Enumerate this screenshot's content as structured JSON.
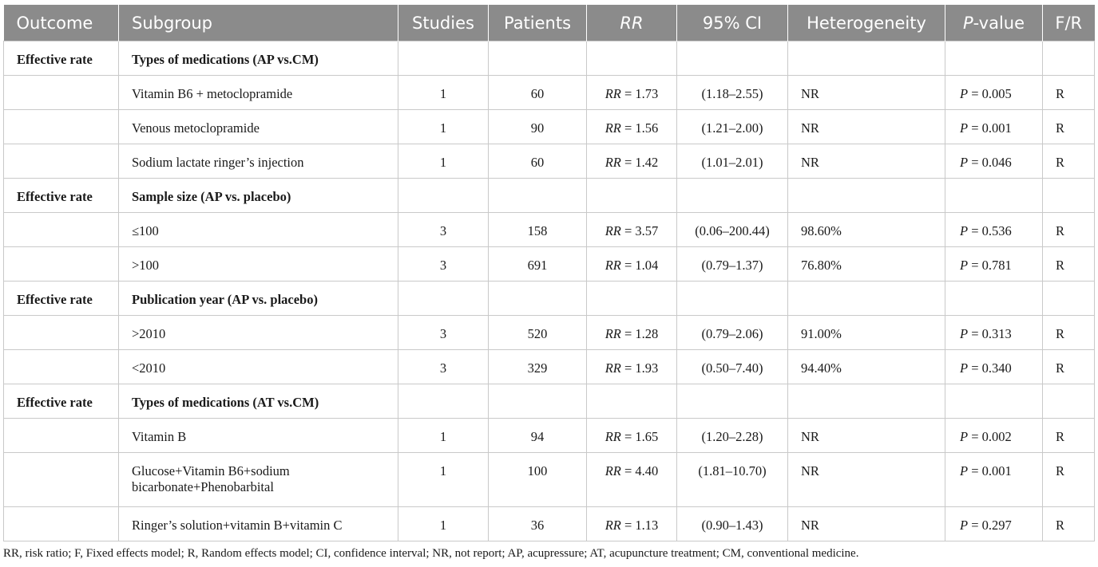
{
  "headers": {
    "outcome": "Outcome",
    "subgroup": "Subgroup",
    "studies": "Studies",
    "patients": "Patients",
    "rr": "RR",
    "ci": "95% CI",
    "heterogeneity": "Heterogeneity",
    "p_prefix": "P",
    "p_suffix": "-value",
    "fr": "F/R"
  },
  "groups": [
    {
      "outcome": "Effective rate",
      "subgroup": "Types of medications (AP vs.CM)",
      "rows": [
        {
          "subgroup": "Vitamin B6 + metoclopramide",
          "studies": "1",
          "patients": "60",
          "rr": "= 1.73",
          "ci": "(1.18–2.55)",
          "het": "NR",
          "p": "= 0.005",
          "fr": "R"
        },
        {
          "subgroup": "Venous metoclopramide",
          "studies": "1",
          "patients": "90",
          "rr": "= 1.56",
          "ci": "(1.21–2.00)",
          "het": "NR",
          "p": "= 0.001",
          "fr": "R"
        },
        {
          "subgroup": "Sodium lactate ringer’s injection",
          "studies": "1",
          "patients": "60",
          "rr": "= 1.42",
          "ci": "(1.01–2.01)",
          "het": "NR",
          "p": "= 0.046",
          "fr": "R"
        }
      ]
    },
    {
      "outcome": "Effective rate",
      "subgroup": "Sample size (AP vs. placebo)",
      "rows": [
        {
          "subgroup": "≤100",
          "studies": "3",
          "patients": "158",
          "rr": "= 3.57",
          "ci": "(0.06–200.44)",
          "het": "98.60%",
          "p": "= 0.536",
          "fr": "R"
        },
        {
          "subgroup": ">100",
          "studies": "3",
          "patients": "691",
          "rr": "= 1.04",
          "ci": "(0.79–1.37)",
          "het": "76.80%",
          "p": "= 0.781",
          "fr": "R"
        }
      ]
    },
    {
      "outcome": "Effective rate",
      "subgroup": "Publication year (AP vs. placebo)",
      "rows": [
        {
          "subgroup": ">2010",
          "studies": "3",
          "patients": "520",
          "rr": "= 1.28",
          "ci": "(0.79–2.06)",
          "het": "91.00%",
          "p": "= 0.313",
          "fr": "R"
        },
        {
          "subgroup": "<2010",
          "studies": "3",
          "patients": "329",
          "rr": "= 1.93",
          "ci": "(0.50–7.40)",
          "het": "94.40%",
          "p": "= 0.340",
          "fr": "R"
        }
      ]
    },
    {
      "outcome": "Effective rate",
      "subgroup": "Types of medications (AT vs.CM)",
      "rows": [
        {
          "subgroup": "Vitamin B",
          "studies": "1",
          "patients": "94",
          "rr": "= 1.65",
          "ci": "(1.20–2.28)",
          "het": "NR",
          "p": "= 0.002",
          "fr": "R"
        },
        {
          "subgroup": "Glucose+Vitamin B6+sodium bicarbonate+Phenobarbital",
          "studies": "1",
          "patients": "100",
          "rr": "= 4.40",
          "ci": "(1.81–10.70)",
          "het": "NR",
          "p": "= 0.001",
          "fr": "R",
          "tall": true
        },
        {
          "subgroup": "Ringer’s solution+vitamin B+vitamin C",
          "studies": "1",
          "patients": "36",
          "rr": "= 1.13",
          "ci": "(0.90–1.43)",
          "het": "NR",
          "p": "= 0.297",
          "fr": "R"
        }
      ]
    }
  ],
  "footnote": "RR, risk ratio; F, Fixed effects model; R, Random effects model; CI, confidence interval; NR, not report; AP, acupressure; AT, acupuncture treatment; CM, conventional medicine."
}
